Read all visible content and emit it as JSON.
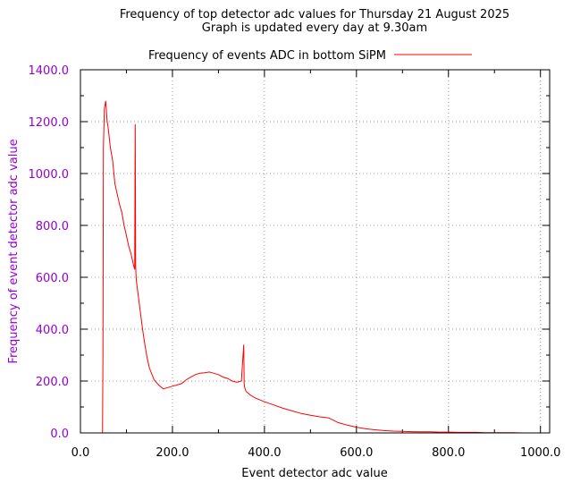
{
  "chart_data": {
    "type": "line",
    "title": "Frequency of top detector adc values for Thursday 21 August 2025",
    "subtitle": "Graph is updated every day at 9.30am",
    "xlabel": "Event detector adc value",
    "ylabel": "Frequency of event detector adc value",
    "xlim": [
      0,
      1020
    ],
    "ylim": [
      0,
      1400
    ],
    "xticks": [
      0,
      200,
      400,
      600,
      800,
      1000
    ],
    "xtick_labels": [
      "0.0",
      "200.0",
      "400.0",
      "600.0",
      "800.0",
      "1000.0"
    ],
    "yticks": [
      0,
      200,
      400,
      600,
      800,
      1000,
      1200,
      1400
    ],
    "ytick_labels": [
      "0.0",
      "200.0",
      "400.0",
      "600.0",
      "800.0",
      "1000.0",
      "1200.0",
      "1400.0"
    ],
    "grid": true,
    "legend_position": "top",
    "series": [
      {
        "name": "Frequency of events ADC in bottom SiPM",
        "color": "#ff0000",
        "x": [
          48,
          49,
          50,
          52,
          55,
          58,
          60,
          65,
          70,
          75,
          80,
          85,
          90,
          95,
          100,
          105,
          110,
          115,
          118,
          119,
          120,
          121,
          122,
          125,
          130,
          135,
          140,
          145,
          150,
          160,
          170,
          180,
          190,
          200,
          210,
          220,
          230,
          240,
          250,
          260,
          270,
          280,
          290,
          300,
          310,
          320,
          330,
          340,
          350,
          355,
          356,
          357,
          360,
          370,
          380,
          400,
          420,
          440,
          460,
          480,
          500,
          520,
          540,
          560,
          580,
          600,
          620,
          640,
          660,
          680,
          700,
          720,
          740,
          760,
          780,
          800,
          820,
          840,
          860,
          880,
          900,
          920,
          940,
          960,
          980
        ],
        "y": [
          0,
          300,
          1100,
          1250,
          1280,
          1200,
          1180,
          1100,
          1050,
          960,
          920,
          880,
          850,
          800,
          760,
          720,
          690,
          650,
          630,
          1190,
          640,
          600,
          580,
          540,
          470,
          400,
          340,
          290,
          250,
          205,
          185,
          170,
          175,
          180,
          185,
          190,
          205,
          215,
          225,
          230,
          232,
          235,
          230,
          225,
          215,
          210,
          200,
          195,
          200,
          340,
          190,
          175,
          160,
          145,
          135,
          120,
          108,
          95,
          85,
          75,
          68,
          62,
          58,
          40,
          30,
          22,
          16,
          12,
          9,
          7,
          6,
          5,
          4,
          4,
          3,
          3,
          2,
          2,
          2,
          1,
          1,
          1,
          1,
          0,
          0
        ]
      }
    ]
  },
  "colors": {
    "axis_text": "#9400d3",
    "series": "#ff0000",
    "grid": "#a0a0a0"
  }
}
